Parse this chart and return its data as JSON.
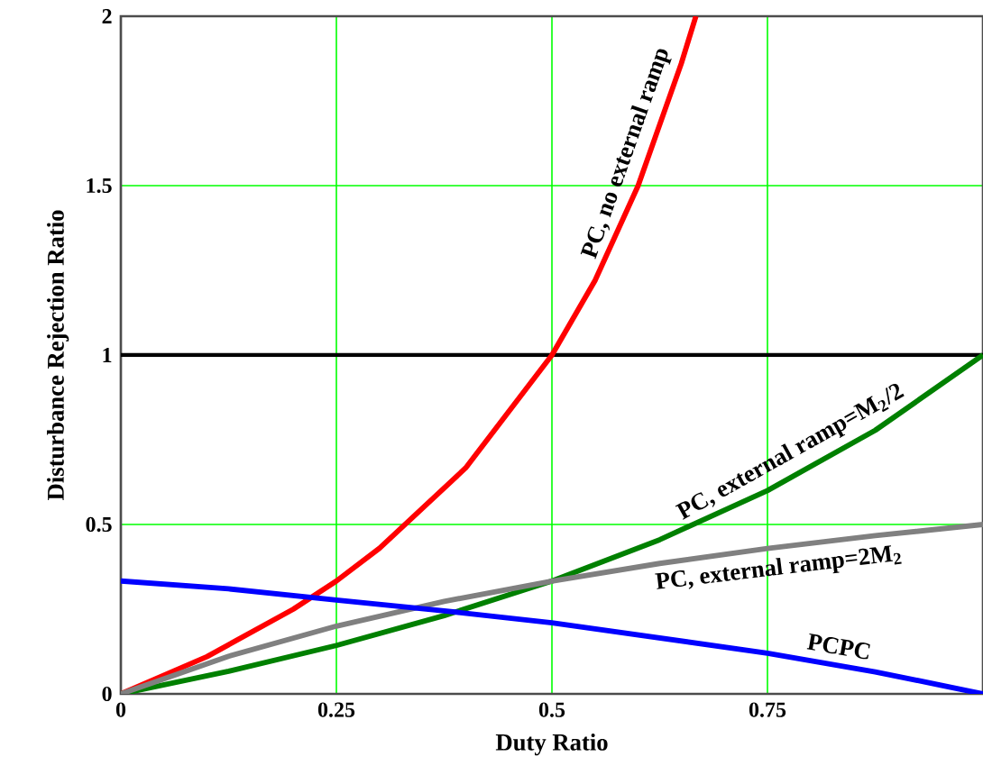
{
  "chart_data": {
    "type": "line",
    "xlabel": "Duty Ratio",
    "ylabel": "Disturbance Rejection Ratio",
    "xlim": [
      0,
      1
    ],
    "ylim": [
      0,
      2
    ],
    "xticks": [
      0,
      0.25,
      0.5,
      0.75
    ],
    "yticks": [
      0,
      0.5,
      1,
      1.5,
      2
    ],
    "grid": true,
    "marker": "none",
    "line_style": "solid",
    "series": [
      {
        "name": "PC, no external ramp",
        "color": "#ff0000",
        "x": [
          0,
          0.1,
          0.2,
          0.25,
          0.3,
          0.4,
          0.5,
          0.55,
          0.6,
          0.65,
          0.667
        ],
        "values": [
          0,
          0.11,
          0.25,
          0.333,
          0.43,
          0.667,
          1,
          1.22,
          1.5,
          1.86,
          2
        ]
      },
      {
        "name": "PC, external ramp=M$_{2}$/2",
        "color": "#008000",
        "x": [
          0,
          0.125,
          0.25,
          0.375,
          0.5,
          0.625,
          0.75,
          0.875,
          1
        ],
        "values": [
          0,
          0.067,
          0.143,
          0.231,
          0.333,
          0.455,
          0.6,
          0.778,
          1
        ]
      },
      {
        "name": "PC, external ramp=2M$_{2}$",
        "color": "#808080",
        "x": [
          0,
          0.125,
          0.25,
          0.375,
          0.5,
          0.625,
          0.75,
          0.875,
          1
        ],
        "values": [
          0,
          0.111,
          0.2,
          0.273,
          0.333,
          0.385,
          0.429,
          0.467,
          0.5
        ]
      },
      {
        "name": "PCPC",
        "color": "#0000ff",
        "x": [
          0,
          0.125,
          0.25,
          0.375,
          0.5,
          0.625,
          0.75,
          0.875,
          1
        ],
        "values": [
          0.333,
          0.31,
          0.277,
          0.245,
          0.21,
          0.165,
          0.12,
          0.065,
          0
        ]
      }
    ],
    "ref_lines": [
      {
        "axis": "y",
        "value": 1,
        "color": "#000000",
        "line_style": "solid"
      }
    ]
  }
}
